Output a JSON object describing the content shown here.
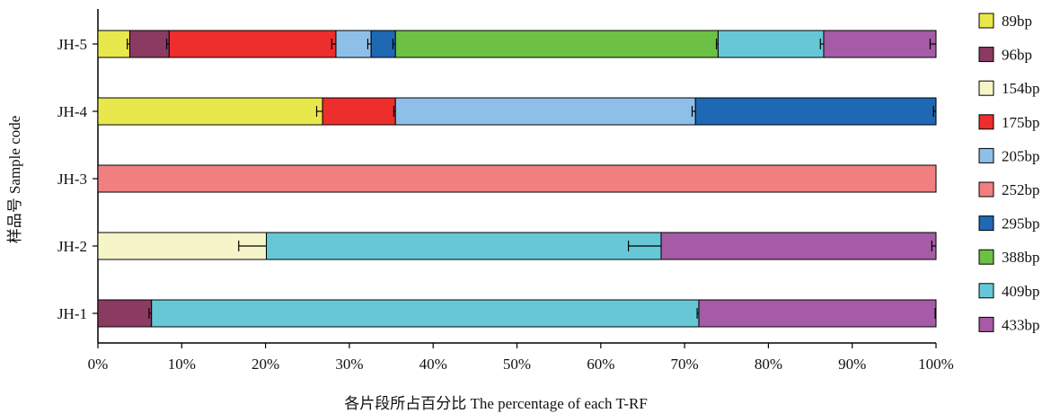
{
  "chart_data": {
    "type": "bar",
    "orientation": "horizontal",
    "stacked": true,
    "xlabel": "各片段所占百分比 The percentage of each T-RF",
    "ylabel": "样品号 Sample code",
    "xlim": [
      0,
      100
    ],
    "x_ticks": [
      "0%",
      "10%",
      "20%",
      "30%",
      "40%",
      "50%",
      "60%",
      "70%",
      "80%",
      "90%",
      "100%"
    ],
    "categories": [
      "JH-5",
      "JH-4",
      "JH-3",
      "JH-2",
      "JH-1"
    ],
    "legend_position": "right",
    "series": [
      {
        "name": "89bp",
        "color": "#e8e84c",
        "values": [
          3.8,
          26.8,
          0,
          0,
          0
        ],
        "errors": [
          0.3,
          0.7,
          0,
          0,
          0
        ]
      },
      {
        "name": "96bp",
        "color": "#8b3a62",
        "values": [
          4.7,
          0,
          0,
          0,
          6.4
        ],
        "errors": [
          0.3,
          0,
          0,
          0,
          0.3
        ]
      },
      {
        "name": "154bp",
        "color": "#f5f5c8",
        "values": [
          0,
          0,
          0,
          20.1,
          0
        ],
        "errors": [
          0,
          0,
          0,
          3.3,
          0
        ]
      },
      {
        "name": "175bp",
        "color": "#ee2d2d",
        "values": [
          19.9,
          8.7,
          0,
          0,
          0
        ],
        "errors": [
          0.5,
          0.2,
          0,
          0,
          0
        ]
      },
      {
        "name": "205bp",
        "color": "#8ebfe8",
        "values": [
          4.2,
          35.8,
          0,
          0,
          0
        ],
        "errors": [
          0.4,
          0.4,
          0,
          0,
          0
        ]
      },
      {
        "name": "252bp",
        "color": "#f27f7f",
        "values": [
          0,
          0,
          100,
          0,
          0
        ],
        "errors": [
          0,
          0,
          0,
          0,
          0
        ]
      },
      {
        "name": "295bp",
        "color": "#1f68b4",
        "values": [
          2.9,
          28.7,
          0,
          0,
          0
        ],
        "errors": [
          0.3,
          0.3,
          0,
          0,
          0
        ]
      },
      {
        "name": "388bp",
        "color": "#6cc043",
        "values": [
          38.5,
          0,
          0,
          0,
          0
        ],
        "errors": [
          0.2,
          0,
          0,
          0,
          0
        ]
      },
      {
        "name": "409bp",
        "color": "#66c8d6",
        "values": [
          12.6,
          0,
          0,
          47.1,
          65.3
        ],
        "errors": [
          0.4,
          0,
          0,
          3.9,
          0.2
        ]
      },
      {
        "name": "433bp",
        "color": "#a55ba5",
        "values": [
          13.4,
          0,
          0,
          32.8,
          28.3
        ],
        "errors": [
          0.7,
          0,
          0,
          0.5,
          0.1
        ]
      }
    ]
  }
}
